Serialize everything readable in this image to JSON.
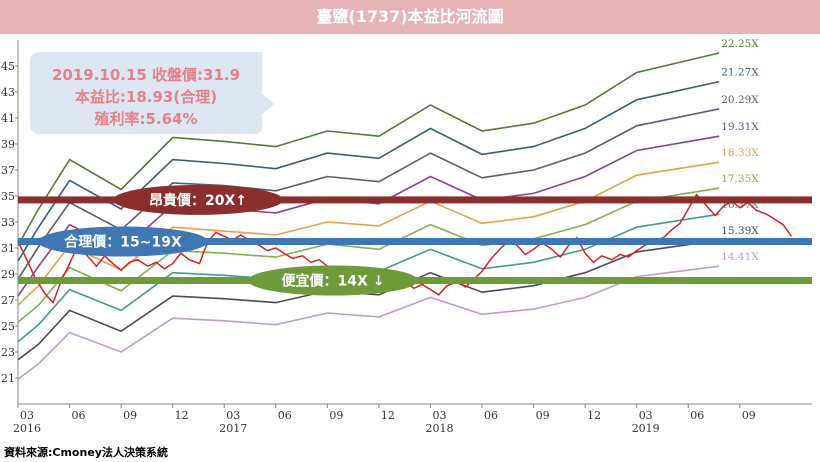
{
  "title": "臺鹽(1737)本益比河流圖",
  "source": "資料來源:Cmoney法人決策系統",
  "info_box": {
    "line1": "2019.10.15 收盤價:31.9",
    "line2": "本益比:18.93(合理)",
    "line3": "殖利率:5.64%",
    "bg_color": "#dde6f1",
    "text_color": "#e57f8a"
  },
  "bands": [
    {
      "id": "expensive",
      "label": "昂貴價：20X↑",
      "price": 34.7,
      "line_color": "#8b2e2e",
      "label_bg": "#8b2e2e",
      "label_x": 1.1
    },
    {
      "id": "fair",
      "label": "合理價：15~19X",
      "price": 31.5,
      "line_color": "#3f77b5",
      "label_bg": "#3f77b5",
      "label_x": 0.35
    },
    {
      "id": "cheap",
      "label": "便宜價：14X ↓",
      "price": 28.5,
      "line_color": "#6f9a3a",
      "label_bg": "#6f9a3a",
      "label_x": 2.45
    }
  ],
  "chart_data": {
    "type": "line",
    "title": "臺鹽(1737)本益比河流圖",
    "xlabel": "",
    "ylabel": "",
    "xlim": [
      2016.0,
      2019.85
    ],
    "ylim": [
      19.0,
      47.0
    ],
    "y_ticks": [
      21,
      23,
      25,
      27,
      29,
      31,
      33,
      35,
      37,
      39,
      41,
      43,
      45
    ],
    "x_ticks": [
      {
        "x": 2016.0,
        "month": "03",
        "year": "2016"
      },
      {
        "x": 2016.25,
        "month": "06",
        "year": ""
      },
      {
        "x": 2016.5,
        "month": "09",
        "year": ""
      },
      {
        "x": 2016.75,
        "month": "12",
        "year": ""
      },
      {
        "x": 2017.0,
        "month": "03",
        "year": "2017"
      },
      {
        "x": 2017.25,
        "month": "06",
        "year": ""
      },
      {
        "x": 2017.5,
        "month": "09",
        "year": ""
      },
      {
        "x": 2017.75,
        "month": "12",
        "year": ""
      },
      {
        "x": 2018.0,
        "month": "03",
        "year": "2018"
      },
      {
        "x": 2018.25,
        "month": "06",
        "year": ""
      },
      {
        "x": 2018.5,
        "month": "09",
        "year": ""
      },
      {
        "x": 2018.75,
        "month": "12",
        "year": ""
      },
      {
        "x": 2019.0,
        "month": "03",
        "year": "2019"
      },
      {
        "x": 2019.25,
        "month": "06",
        "year": ""
      },
      {
        "x": 2019.5,
        "month": "09",
        "year": ""
      }
    ],
    "grid": false,
    "series_x": [
      2016.0,
      2016.1,
      2016.25,
      2016.5,
      2016.75,
      2017.0,
      2017.25,
      2017.5,
      2017.75,
      2018.0,
      2018.25,
      2018.5,
      2018.75,
      2019.0,
      2019.4
    ],
    "series": [
      {
        "name": "22.25X",
        "color": "#4e7d32",
        "values": [
          31.2,
          34.0,
          37.8,
          35.5,
          39.5,
          39.2,
          38.8,
          40.0,
          39.6,
          42.0,
          40.0,
          40.6,
          42.0,
          44.5,
          46.0
        ]
      },
      {
        "name": "21.27X",
        "color": "#355e79",
        "values": [
          30.0,
          32.6,
          36.2,
          34.0,
          37.8,
          37.5,
          37.1,
          38.3,
          37.9,
          40.2,
          38.2,
          38.8,
          40.2,
          42.4,
          43.8
        ]
      },
      {
        "name": "20.29X",
        "color": "#5b5b73",
        "values": [
          28.6,
          31.1,
          34.5,
          32.4,
          36.0,
          35.8,
          35.4,
          36.5,
          36.1,
          38.3,
          36.4,
          37.0,
          38.3,
          40.4,
          41.7
        ]
      },
      {
        "name": "19.31X",
        "color": "#8c3e9b",
        "values": [
          27.3,
          29.6,
          32.8,
          30.8,
          34.3,
          34.0,
          33.7,
          34.8,
          34.4,
          36.5,
          34.7,
          35.2,
          36.5,
          38.5,
          39.6
        ]
      },
      {
        "name": "18.33X",
        "color": "#e9a04a",
        "values": [
          26.6,
          28.1,
          31.2,
          29.3,
          32.6,
          32.3,
          32.0,
          33.0,
          32.7,
          34.6,
          32.9,
          33.4,
          34.6,
          36.6,
          37.6
        ]
      },
      {
        "name": "17.35X",
        "color": "#7ab648",
        "values": [
          25.3,
          26.6,
          29.5,
          27.7,
          30.8,
          30.6,
          30.3,
          31.3,
          30.9,
          32.8,
          31.2,
          31.7,
          32.8,
          34.6,
          35.6
        ]
      },
      {
        "name": "16.37X",
        "color": "#3e9e8a",
        "values": [
          23.8,
          25.1,
          27.8,
          26.2,
          29.1,
          28.9,
          28.6,
          29.5,
          29.2,
          30.9,
          29.4,
          29.9,
          30.9,
          32.6,
          33.6
        ]
      },
      {
        "name": "15.39X",
        "color": "#4a4a5e",
        "values": [
          22.4,
          23.6,
          26.2,
          24.6,
          27.3,
          27.1,
          26.8,
          27.7,
          27.4,
          29.1,
          27.6,
          28.1,
          29.1,
          30.7,
          31.6
        ]
      },
      {
        "name": "14.41X",
        "color": "#c49ad1",
        "values": [
          20.9,
          22.1,
          24.5,
          23.0,
          25.6,
          25.4,
          25.1,
          26.0,
          25.7,
          27.2,
          25.9,
          26.3,
          27.2,
          28.8,
          29.6
        ]
      }
    ],
    "price": {
      "name": "收盤價",
      "color": "#e02020",
      "x": [
        2016.0,
        2016.04,
        2016.08,
        2016.13,
        2016.17,
        2016.21,
        2016.25,
        2016.29,
        2016.33,
        2016.38,
        2016.42,
        2016.46,
        2016.5,
        2016.54,
        2016.58,
        2016.63,
        2016.67,
        2016.71,
        2016.75,
        2016.79,
        2016.83,
        2016.88,
        2016.92,
        2016.96,
        2017.0,
        2017.04,
        2017.08,
        2017.13,
        2017.17,
        2017.21,
        2017.25,
        2017.29,
        2017.33,
        2017.38,
        2017.42,
        2017.46,
        2017.5,
        2017.54,
        2017.58,
        2017.63,
        2017.67,
        2017.71,
        2017.75,
        2017.79,
        2017.83,
        2017.88,
        2017.92,
        2017.96,
        2018.0,
        2018.04,
        2018.08,
        2018.13,
        2018.17,
        2018.21,
        2018.25,
        2018.29,
        2018.33,
        2018.38,
        2018.42,
        2018.46,
        2018.5,
        2018.54,
        2018.58,
        2018.63,
        2018.67,
        2018.71,
        2018.75,
        2018.79,
        2018.83,
        2018.88,
        2018.92,
        2018.96,
        2019.0,
        2019.04,
        2019.08,
        2019.13,
        2019.17,
        2019.21,
        2019.25,
        2019.29,
        2019.33,
        2019.38,
        2019.42,
        2019.46,
        2019.5,
        2019.54,
        2019.58,
        2019.63,
        2019.67,
        2019.71,
        2019.75
      ],
      "values": [
        31.5,
        30.2,
        28.8,
        27.5,
        26.8,
        28.5,
        29.8,
        31.2,
        30.5,
        29.6,
        30.4,
        29.8,
        29.3,
        29.9,
        30.1,
        29.6,
        29.9,
        29.4,
        29.8,
        30.6,
        30.1,
        29.8,
        31.5,
        32.2,
        31.9,
        31.6,
        32.0,
        31.5,
        31.2,
        30.8,
        31.0,
        30.6,
        30.2,
        30.4,
        29.9,
        30.1,
        29.6,
        29.5,
        29.2,
        28.5,
        28.2,
        28.0,
        28.4,
        28.1,
        27.8,
        28.3,
        27.9,
        28.2,
        27.8,
        27.4,
        28.1,
        28.4,
        28.0,
        28.6,
        29.2,
        30.1,
        30.8,
        31.6,
        31.2,
        30.5,
        30.9,
        31.4,
        31.0,
        30.3,
        31.2,
        31.8,
        30.6,
        29.9,
        30.4,
        30.1,
        30.5,
        30.3,
        30.8,
        31.2,
        31.5,
        31.8,
        32.4,
        32.9,
        34.0,
        35.1,
        34.4,
        33.5,
        34.2,
        34.6,
        34.1,
        34.5,
        33.9,
        33.6,
        33.2,
        32.8,
        31.9
      ]
    }
  }
}
